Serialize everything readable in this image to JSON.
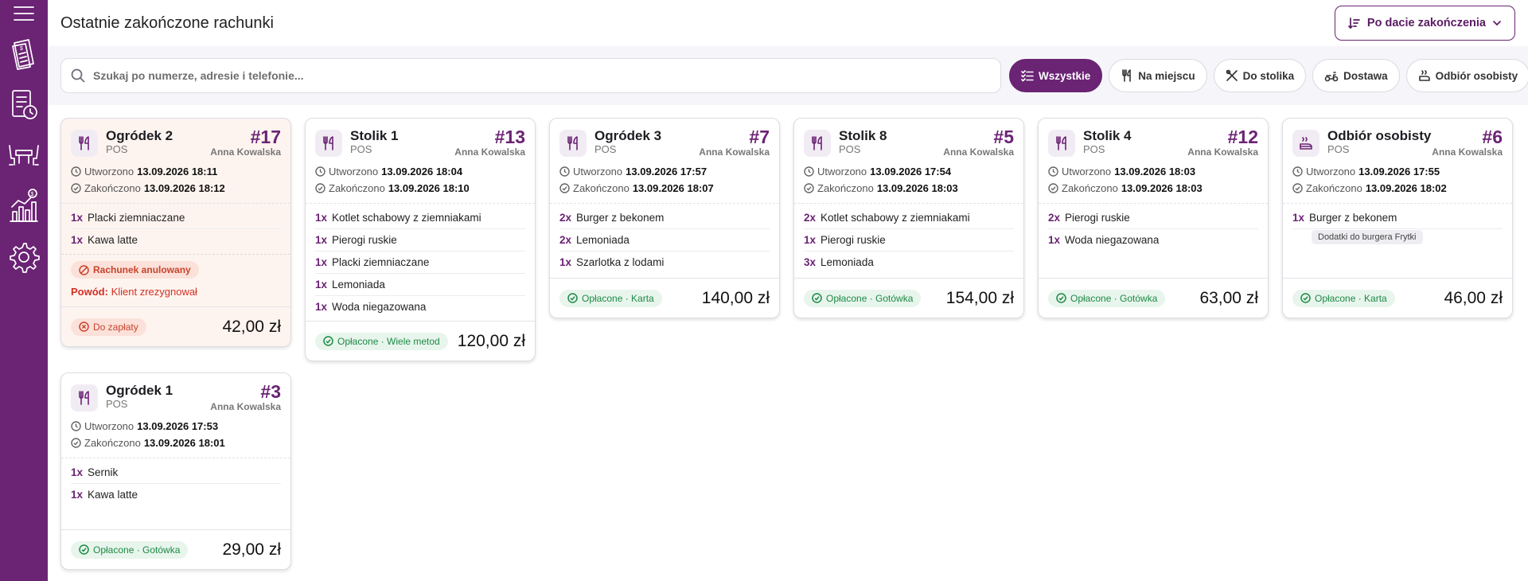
{
  "header": {
    "title": "Ostatnie zakończone rachunki",
    "sort_label": "Po dacie zakończenia"
  },
  "search": {
    "placeholder": "Szukaj po numerze, adresie i telefonie..."
  },
  "filters": [
    {
      "label": "Wszystkie",
      "icon": "list-check-icon",
      "active": true
    },
    {
      "label": "Na miejscu",
      "icon": "fork-knife-icon",
      "active": false
    },
    {
      "label": "Do stolika",
      "icon": "crossed-utensils-icon",
      "active": false
    },
    {
      "label": "Dostawa",
      "icon": "scooter-icon",
      "active": false
    },
    {
      "label": "Odbiór osobisty",
      "icon": "takeaway-icon",
      "active": false
    }
  ],
  "sidebar": [
    {
      "name": "receipt-icon"
    },
    {
      "name": "history-icon"
    },
    {
      "name": "tables-icon"
    },
    {
      "name": "reports-icon"
    },
    {
      "name": "settings-icon"
    }
  ],
  "labels": {
    "created": "Utworzono",
    "completed": "Zakończono"
  },
  "cards": [
    {
      "name": "Ogródek 2",
      "source": "POS",
      "number": "#17",
      "waiter": "Anna Kowalska",
      "created": "13.09.2026 18:11",
      "completed": "13.09.2026 18:12",
      "items": [
        {
          "qty": "1x",
          "name": "Placki ziemniaczane"
        },
        {
          "qty": "1x",
          "name": "Kawa latte"
        }
      ],
      "cancel_label": "Rachunek anulowany",
      "reason_label": "Powód:",
      "reason": "Klient zrezygnował",
      "payment": "Do zapłaty",
      "amount": "42,00 zł"
    },
    {
      "name": "Stolik 1",
      "source": "POS",
      "number": "#13",
      "waiter": "Anna Kowalska",
      "created": "13.09.2026 18:04",
      "completed": "13.09.2026 18:10",
      "items": [
        {
          "qty": "1x",
          "name": "Kotlet schabowy z ziemniakami"
        },
        {
          "qty": "1x",
          "name": "Pierogi ruskie"
        },
        {
          "qty": "1x",
          "name": "Placki ziemniaczane"
        },
        {
          "qty": "1x",
          "name": "Lemoniada"
        },
        {
          "qty": "1x",
          "name": "Woda niegazowana"
        }
      ],
      "payment": "Opłacone · Wiele metod",
      "amount": "120,00 zł"
    },
    {
      "name": "Ogródek 3",
      "source": "POS",
      "number": "#7",
      "waiter": "Anna Kowalska",
      "created": "13.09.2026 17:57",
      "completed": "13.09.2026 18:07",
      "items": [
        {
          "qty": "2x",
          "name": "Burger z bekonem"
        },
        {
          "qty": "2x",
          "name": "Lemoniada"
        },
        {
          "qty": "1x",
          "name": "Szarlotka z lodami"
        }
      ],
      "payment": "Opłacone · Karta",
      "amount": "140,00 zł"
    },
    {
      "name": "Stolik 8",
      "source": "POS",
      "number": "#5",
      "waiter": "Anna Kowalska",
      "created": "13.09.2026 17:54",
      "completed": "13.09.2026 18:03",
      "items": [
        {
          "qty": "2x",
          "name": "Kotlet schabowy z ziemniakami"
        },
        {
          "qty": "1x",
          "name": "Pierogi ruskie"
        },
        {
          "qty": "3x",
          "name": "Lemoniada"
        }
      ],
      "payment": "Opłacone · Gotówka",
      "amount": "154,00 zł"
    },
    {
      "name": "Stolik 4",
      "source": "POS",
      "number": "#12",
      "waiter": "Anna Kowalska",
      "created": "13.09.2026 18:03",
      "completed": "13.09.2026 18:03",
      "items": [
        {
          "qty": "2x",
          "name": "Pierogi ruskie"
        },
        {
          "qty": "1x",
          "name": "Woda niegazowana"
        }
      ],
      "payment": "Opłacone · Gotówka",
      "amount": "63,00 zł"
    },
    {
      "name": "Odbiór osobisty",
      "source": "POS",
      "number": "#6",
      "waiter": "Anna Kowalska",
      "created": "13.09.2026 17:55",
      "completed": "13.09.2026 18:02",
      "items": [
        {
          "qty": "1x",
          "name": "Burger z bekonem"
        }
      ],
      "extra": "Dodatki do burgera Frytki",
      "payment": "Opłacone · Karta",
      "amount": "46,00 zł"
    },
    {
      "name": "Ogródek 1",
      "source": "POS",
      "number": "#3",
      "waiter": "Anna Kowalska",
      "created": "13.09.2026 17:53",
      "completed": "13.09.2026 18:01",
      "items": [
        {
          "qty": "1x",
          "name": "Sernik"
        },
        {
          "qty": "1x",
          "name": "Kawa latte"
        }
      ],
      "payment": "Opłacone · Gotówka",
      "amount": "29,00 zł"
    }
  ]
}
